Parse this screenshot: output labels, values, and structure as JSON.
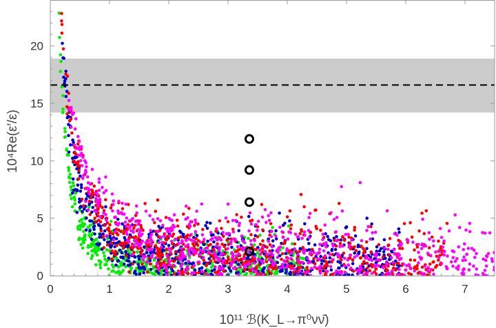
{
  "chart_data": {
    "type": "scatter",
    "title": "",
    "xlabel": "10¹¹ ℬ(K_L→π⁰νν̄)",
    "ylabel": "10⁴Re(ε′/ε)",
    "xlim": [
      0,
      7.5
    ],
    "ylim": [
      0,
      24
    ],
    "x_ticks": [
      "0",
      "1",
      "2",
      "3",
      "4",
      "5",
      "6",
      "7"
    ],
    "y_ticks": [
      "0",
      "5",
      "10",
      "15",
      "20"
    ],
    "grid": false,
    "legend": "none",
    "band": {
      "y_low": 14.2,
      "y_high": 18.9,
      "color": "#cccccc"
    },
    "reference_line": {
      "y": 16.6,
      "style": "dashed",
      "color": "#000000"
    },
    "series": [
      {
        "color": "#00ee00",
        "curve": {
          "A": 2.2,
          "c": 0.05,
          "p": 1.45,
          "yshift": -0.6
        },
        "spread": 1.4,
        "x_range": [
          0.02,
          4.3
        ],
        "n": 900
      },
      {
        "color": "#0000cc",
        "curve": {
          "A": 3.8,
          "c": 0.06,
          "p": 1.3,
          "yshift": -0.5
        },
        "spread": 1.7,
        "x_range": [
          0.05,
          5.9
        ],
        "n": 1000
      },
      {
        "color": "#ff0000",
        "curve": {
          "A": 5.2,
          "c": 0.08,
          "p": 1.15,
          "yshift": -0.4
        },
        "spread": 1.8,
        "x_range": [
          0.15,
          6.7
        ],
        "n": 900
      },
      {
        "color": "#ff00ff",
        "curve": {
          "A": 6.4,
          "c": 0.1,
          "p": 1.05,
          "yshift": -0.4
        },
        "spread": 1.7,
        "x_range": [
          0.3,
          7.5
        ],
        "n": 850
      }
    ],
    "markers": [
      {
        "x": 3.36,
        "y": 2.1
      },
      {
        "x": 3.36,
        "y": 6.4
      },
      {
        "x": 3.36,
        "y": 9.2
      },
      {
        "x": 3.36,
        "y": 11.9
      }
    ]
  }
}
